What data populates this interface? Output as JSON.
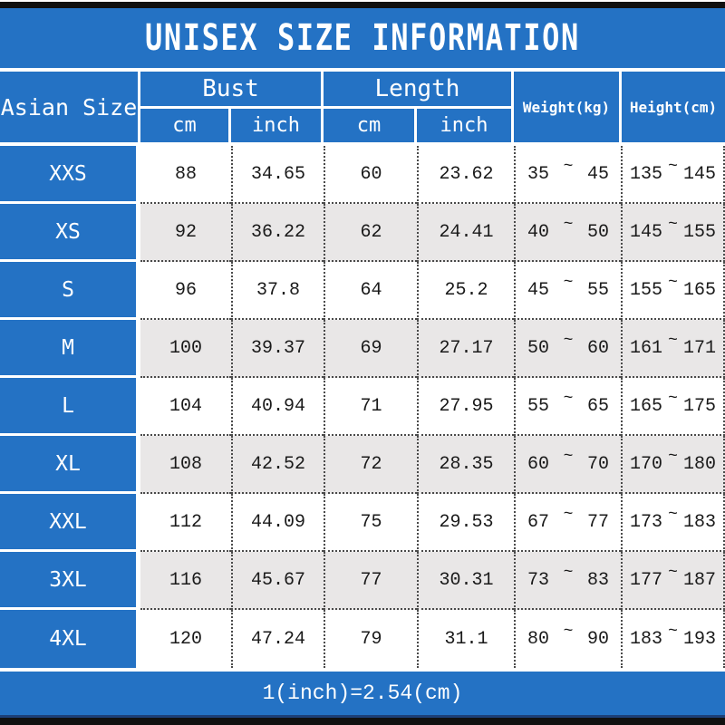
{
  "title": "UNISEX SIZE INFORMATION",
  "footer_note": "1(inch)=2.54(cm)",
  "colors": {
    "header_blue": "#2472c4",
    "alt_row_gray": "#e9e7e7",
    "bar_black": "#101010",
    "dotted_line": "#4a4a4a"
  },
  "chart_data": {
    "type": "table",
    "title": "UNISEX SIZE INFORMATION",
    "tilde": "~",
    "header": {
      "size_col": "Asian Size",
      "bust_group": "Bust",
      "length_group": "Length",
      "bust_cm": "cm",
      "bust_inch": "inch",
      "length_cm": "cm",
      "length_inch": "inch",
      "weight_col": "Weight(kg)",
      "height_col": "Height(cm)"
    },
    "columns": [
      "Asian Size",
      "Bust cm",
      "Bust inch",
      "Length cm",
      "Length inch",
      "Weight(kg)",
      "Height(cm)"
    ],
    "rows": [
      {
        "size": "XXS",
        "bust_cm": "88",
        "bust_inch": "34.65",
        "length_cm": "60",
        "length_inch": "23.62",
        "weight_min": "35",
        "weight_max": "45",
        "height_min": "135",
        "height_max": "145"
      },
      {
        "size": "XS",
        "bust_cm": "92",
        "bust_inch": "36.22",
        "length_cm": "62",
        "length_inch": "24.41",
        "weight_min": "40",
        "weight_max": "50",
        "height_min": "145",
        "height_max": "155"
      },
      {
        "size": "S",
        "bust_cm": "96",
        "bust_inch": "37.8",
        "length_cm": "64",
        "length_inch": "25.2",
        "weight_min": "45",
        "weight_max": "55",
        "height_min": "155",
        "height_max": "165"
      },
      {
        "size": "M",
        "bust_cm": "100",
        "bust_inch": "39.37",
        "length_cm": "69",
        "length_inch": "27.17",
        "weight_min": "50",
        "weight_max": "60",
        "height_min": "161",
        "height_max": "171"
      },
      {
        "size": "L",
        "bust_cm": "104",
        "bust_inch": "40.94",
        "length_cm": "71",
        "length_inch": "27.95",
        "weight_min": "55",
        "weight_max": "65",
        "height_min": "165",
        "height_max": "175"
      },
      {
        "size": "XL",
        "bust_cm": "108",
        "bust_inch": "42.52",
        "length_cm": "72",
        "length_inch": "28.35",
        "weight_min": "60",
        "weight_max": "70",
        "height_min": "170",
        "height_max": "180"
      },
      {
        "size": "XXL",
        "bust_cm": "112",
        "bust_inch": "44.09",
        "length_cm": "75",
        "length_inch": "29.53",
        "weight_min": "67",
        "weight_max": "77",
        "height_min": "173",
        "height_max": "183"
      },
      {
        "size": "3XL",
        "bust_cm": "116",
        "bust_inch": "45.67",
        "length_cm": "77",
        "length_inch": "30.31",
        "weight_min": "73",
        "weight_max": "83",
        "height_min": "177",
        "height_max": "187"
      },
      {
        "size": "4XL",
        "bust_cm": "120",
        "bust_inch": "47.24",
        "length_cm": "79",
        "length_inch": "31.1",
        "weight_min": "80",
        "weight_max": "90",
        "height_min": "183",
        "height_max": "193"
      }
    ],
    "footer_note": "1(inch)=2.54(cm)"
  }
}
